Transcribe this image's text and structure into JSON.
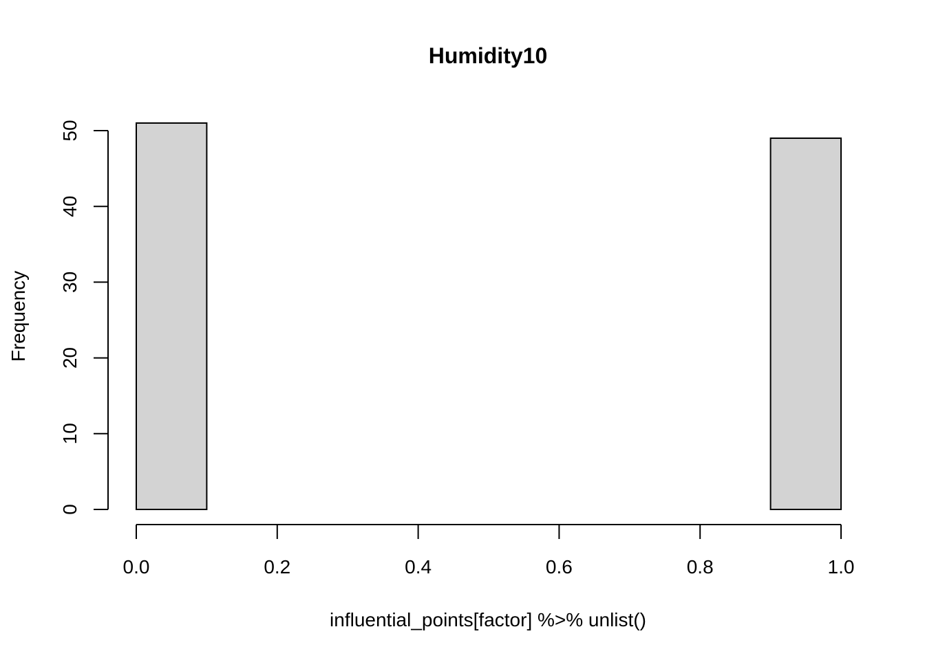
{
  "chart_data": {
    "type": "bar",
    "title": "Humidity10",
    "xlabel": "influential_points[factor] %>% unlist()",
    "ylabel": "Frequency",
    "bins": [
      {
        "x0": 0.0,
        "x1": 0.1,
        "count": 51
      },
      {
        "x0": 0.1,
        "x1": 0.2,
        "count": 0
      },
      {
        "x0": 0.2,
        "x1": 0.3,
        "count": 0
      },
      {
        "x0": 0.3,
        "x1": 0.4,
        "count": 0
      },
      {
        "x0": 0.4,
        "x1": 0.5,
        "count": 0
      },
      {
        "x0": 0.5,
        "x1": 0.6,
        "count": 0
      },
      {
        "x0": 0.6,
        "x1": 0.7,
        "count": 0
      },
      {
        "x0": 0.7,
        "x1": 0.8,
        "count": 0
      },
      {
        "x0": 0.8,
        "x1": 0.9,
        "count": 0
      },
      {
        "x0": 0.9,
        "x1": 1.0,
        "count": 49
      }
    ],
    "xlim": [
      0.0,
      1.0
    ],
    "ylim": [
      0,
      51
    ],
    "x_ticks": [
      "0.0",
      "0.2",
      "0.4",
      "0.6",
      "0.8",
      "1.0"
    ],
    "y_ticks": [
      "0",
      "10",
      "20",
      "30",
      "40",
      "50"
    ],
    "bar_fill": "#d3d3d3",
    "bar_stroke": "#000000",
    "grid": false,
    "legend": "none"
  }
}
